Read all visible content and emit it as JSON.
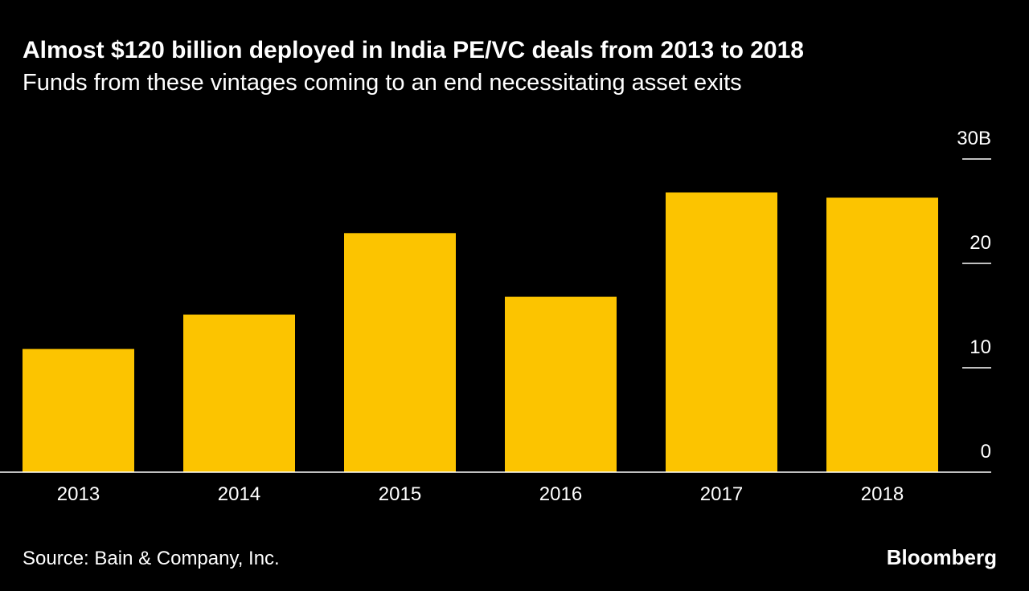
{
  "chart_data": {
    "type": "bar",
    "title": "Almost $120 billion deployed in India PE/VC deals from 2013 to 2018",
    "subtitle": "Funds from these vintages coming to an end necessitating asset exits",
    "categories": [
      "2013",
      "2014",
      "2015",
      "2016",
      "2017",
      "2018"
    ],
    "values": [
      11.8,
      15.1,
      22.9,
      16.8,
      26.8,
      26.3
    ],
    "color": "#fcc400",
    "ylim": [
      0,
      30
    ],
    "yticks": [
      0,
      10,
      20,
      {
        "value": 30,
        "label": "30B"
      }
    ],
    "source": "Source: Bain & Company, Inc.",
    "brand": "Bloomberg"
  }
}
